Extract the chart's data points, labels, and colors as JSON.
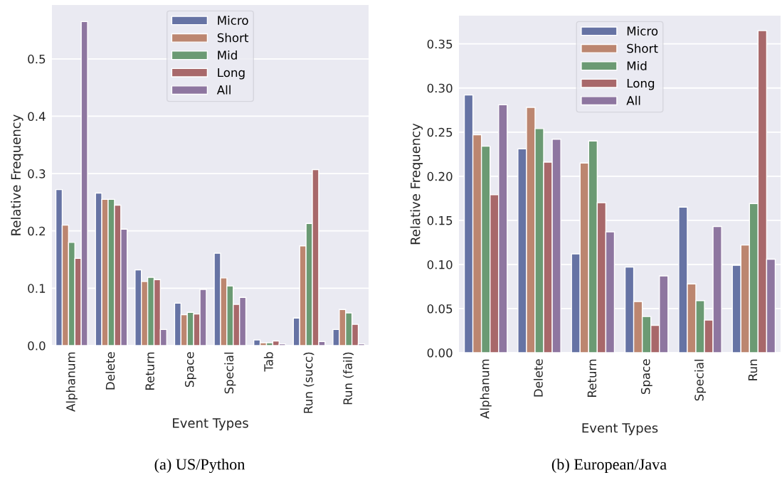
{
  "chart_data": [
    {
      "type": "bar",
      "xlabel": "Event Types",
      "ylabel": "Relative Frequency",
      "categories": [
        "Alphanum",
        "Delete",
        "Return",
        "Space",
        "Special",
        "Tab",
        "Run (succ)",
        "Run (fail)"
      ],
      "series": [
        {
          "name": "Micro",
          "color": "#6673a4",
          "values": [
            0.272,
            0.266,
            0.132,
            0.074,
            0.161,
            0.01,
            0.048,
            0.028
          ]
        },
        {
          "name": "Short",
          "color": "#bc8670",
          "values": [
            0.21,
            0.255,
            0.112,
            0.054,
            0.118,
            0.005,
            0.174,
            0.063
          ]
        },
        {
          "name": "Mid",
          "color": "#6b9a73",
          "values": [
            0.18,
            0.255,
            0.119,
            0.058,
            0.104,
            0.005,
            0.213,
            0.057
          ]
        },
        {
          "name": "Long",
          "color": "#a8686a",
          "values": [
            0.152,
            0.245,
            0.115,
            0.055,
            0.072,
            0.008,
            0.307,
            0.037
          ]
        },
        {
          "name": "All",
          "color": "#8e76a0",
          "values": [
            0.565,
            0.203,
            0.028,
            0.098,
            0.084,
            0.003,
            0.007,
            0.003
          ]
        }
      ],
      "ylim": [
        0,
        0.594
      ],
      "yticks": [
        {
          "value": 0,
          "label": "0.0"
        },
        0.1,
        0.2,
        0.3,
        0.4,
        0.5
      ],
      "grid": "y",
      "legend": "top",
      "annotations": [
        "(a) US/Python"
      ]
    },
    {
      "type": "bar",
      "xlabel": "Event Types",
      "ylabel": "Relative Frequency",
      "categories": [
        "Alphanum",
        "Delete",
        "Return",
        "Space",
        "Special",
        "Run"
      ],
      "series": [
        {
          "name": "Micro",
          "color": "#6673a4",
          "values": [
            0.292,
            0.231,
            0.112,
            0.097,
            0.165,
            0.099
          ]
        },
        {
          "name": "Short",
          "color": "#bc8670",
          "values": [
            0.247,
            0.278,
            0.215,
            0.058,
            0.078,
            0.122
          ]
        },
        {
          "name": "Mid",
          "color": "#6b9a73",
          "values": [
            0.234,
            0.254,
            0.24,
            0.041,
            0.059,
            0.169
          ]
        },
        {
          "name": "Long",
          "color": "#a8686a",
          "values": [
            0.179,
            0.216,
            0.17,
            0.031,
            0.037,
            0.365
          ]
        },
        {
          "name": "All",
          "color": "#8e76a0",
          "values": [
            0.281,
            0.242,
            0.137,
            0.087,
            0.143,
            0.106
          ]
        }
      ],
      "ylim": [
        0,
        0.382
      ],
      "yticks": [
        {
          "value": 0,
          "label": "0.00"
        },
        {
          "value": 0.05,
          "label": "0.05"
        },
        {
          "value": 0.1,
          "label": "0.10"
        },
        {
          "value": 0.15,
          "label": "0.15"
        },
        {
          "value": 0.2,
          "label": "0.20"
        },
        {
          "value": 0.25,
          "label": "0.25"
        },
        {
          "value": 0.3,
          "label": "0.30"
        },
        {
          "value": 0.35,
          "label": "0.35"
        }
      ],
      "grid": "y",
      "legend": "top",
      "annotations": [
        "(b) European/Java"
      ]
    }
  ]
}
